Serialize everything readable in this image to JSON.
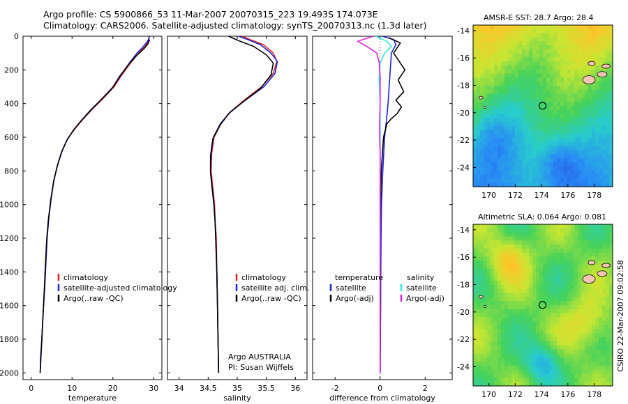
{
  "header": {
    "line1": "Argo profile: CS 5900866_53 11-Mar-2007 20070315_223 19.493S 174.073E",
    "line2": "Climatology: CARS2006. Satellite-adjusted climatology: synTS_20070313.nc (1.3d later)"
  },
  "colors": {
    "red": "#e02020",
    "blue": "#1a22d8",
    "black": "#000000",
    "cyan": "#30e8e8",
    "magenta": "#e020e0"
  },
  "chart_data": [
    {
      "type": "line",
      "id": "temperature",
      "xlabel": "temperature",
      "ylabel": "",
      "xlim": [
        -2,
        32
      ],
      "ylim": [
        2040,
        0
      ],
      "xticks": [
        "0",
        "10",
        "20",
        "30"
      ],
      "xtick_values": [
        0,
        10,
        20,
        30
      ],
      "yticks": [
        "0",
        "200",
        "400",
        "600",
        "800",
        "1000",
        "1200",
        "1400",
        "1600",
        "1800",
        "2000"
      ],
      "ytick_values": [
        0,
        200,
        400,
        600,
        800,
        1000,
        1200,
        1400,
        1600,
        1800,
        2000
      ],
      "legend": [
        "climatology",
        "satellite-adjusted climatology",
        "Argo(..raw -QC)"
      ],
      "series": [
        {
          "name": "climatology",
          "color": "red",
          "points": [
            [
              28.9,
              0
            ],
            [
              28.7,
              30
            ],
            [
              27.9,
              60
            ],
            [
              26.3,
              100
            ],
            [
              24.3,
              160
            ],
            [
              22.2,
              230
            ],
            [
              20.3,
              300
            ],
            [
              17.6,
              370
            ],
            [
              15.1,
              430
            ],
            [
              12.8,
              490
            ],
            [
              10.7,
              550
            ],
            [
              8.9,
              610
            ],
            [
              7.6,
              680
            ],
            [
              6.5,
              760
            ],
            [
              5.6,
              850
            ],
            [
              4.9,
              960
            ],
            [
              4.3,
              1080
            ],
            [
              3.9,
              1200
            ],
            [
              3.6,
              1340
            ],
            [
              3.3,
              1500
            ],
            [
              2.9,
              1650
            ],
            [
              2.6,
              1800
            ],
            [
              2.4,
              1900
            ],
            [
              2.2,
              2000
            ]
          ]
        },
        {
          "name": "satellite-adjusted climatology",
          "color": "blue",
          "points": [
            [
              29.0,
              0
            ],
            [
              28.5,
              30
            ],
            [
              27.5,
              60
            ],
            [
              25.9,
              100
            ],
            [
              24.0,
              160
            ],
            [
              22.0,
              230
            ],
            [
              20.1,
              300
            ],
            [
              17.4,
              370
            ],
            [
              15.0,
              430
            ],
            [
              12.7,
              490
            ],
            [
              10.6,
              550
            ],
            [
              8.9,
              610
            ],
            [
              7.6,
              680
            ],
            [
              6.5,
              760
            ],
            [
              5.6,
              850
            ],
            [
              4.9,
              960
            ],
            [
              4.3,
              1080
            ],
            [
              3.9,
              1200
            ],
            [
              3.6,
              1340
            ],
            [
              3.3,
              1500
            ],
            [
              2.9,
              1650
            ],
            [
              2.6,
              1800
            ],
            [
              2.4,
              1900
            ],
            [
              2.2,
              2000
            ]
          ]
        },
        {
          "name": "Argo(..raw -QC)",
          "color": "black",
          "points": [
            [
              29.0,
              20
            ],
            [
              28.6,
              45
            ],
            [
              27.6,
              75
            ],
            [
              25.6,
              120
            ],
            [
              23.8,
              170
            ],
            [
              21.6,
              240
            ],
            [
              19.8,
              310
            ],
            [
              17.0,
              380
            ],
            [
              14.5,
              440
            ],
            [
              12.3,
              500
            ],
            [
              10.3,
              560
            ],
            [
              8.7,
              620
            ],
            [
              7.4,
              690
            ],
            [
              6.4,
              770
            ],
            [
              5.5,
              860
            ],
            [
              4.8,
              970
            ],
            [
              4.2,
              1090
            ],
            [
              3.8,
              1210
            ],
            [
              3.5,
              1350
            ],
            [
              3.2,
              1510
            ],
            [
              2.9,
              1660
            ],
            [
              2.6,
              1810
            ],
            [
              2.3,
              1910
            ],
            [
              2.2,
              2000
            ]
          ]
        }
      ]
    },
    {
      "type": "line",
      "id": "salinity",
      "xlabel": "salinity",
      "xlim": [
        33.8,
        36.2
      ],
      "ylim": [
        2040,
        0
      ],
      "xticks": [
        "34",
        "34.5",
        "35",
        "35.5",
        "36"
      ],
      "xtick_values": [
        34,
        34.5,
        35,
        35.5,
        36
      ],
      "legend": [
        "climatology",
        "satellite adj. clim.",
        "Argo(..raw -QC)"
      ],
      "note": [
        "Argo AUSTRALIA",
        "PI: Susan Wijffels"
      ],
      "series": [
        {
          "name": "climatology",
          "color": "red",
          "points": [
            [
              35.08,
              0
            ],
            [
              35.22,
              20
            ],
            [
              35.45,
              50
            ],
            [
              35.62,
              100
            ],
            [
              35.68,
              150
            ],
            [
              35.62,
              220
            ],
            [
              35.42,
              300
            ],
            [
              35.12,
              380
            ],
            [
              34.88,
              450
            ],
            [
              34.72,
              520
            ],
            [
              34.6,
              600
            ],
            [
              34.56,
              700
            ],
            [
              34.55,
              800
            ],
            [
              34.58,
              900
            ],
            [
              34.61,
              1000
            ],
            [
              34.62,
              1100
            ],
            [
              34.64,
              1200
            ],
            [
              34.65,
              1400
            ],
            [
              34.66,
              1600
            ],
            [
              34.67,
              1800
            ],
            [
              34.68,
              2000
            ]
          ]
        },
        {
          "name": "satellite adj. clim.",
          "color": "blue",
          "points": [
            [
              35.02,
              0
            ],
            [
              35.18,
              20
            ],
            [
              35.4,
              50
            ],
            [
              35.58,
              100
            ],
            [
              35.69,
              150
            ],
            [
              35.65,
              220
            ],
            [
              35.46,
              300
            ],
            [
              35.14,
              380
            ],
            [
              34.88,
              450
            ],
            [
              34.71,
              520
            ],
            [
              34.59,
              600
            ],
            [
              34.55,
              700
            ],
            [
              34.54,
              800
            ],
            [
              34.57,
              900
            ],
            [
              34.6,
              1000
            ],
            [
              34.62,
              1100
            ],
            [
              34.63,
              1200
            ],
            [
              34.65,
              1400
            ],
            [
              34.66,
              1600
            ],
            [
              34.67,
              1800
            ],
            [
              34.68,
              2000
            ]
          ]
        },
        {
          "name": "Argo(..raw -QC)",
          "color": "black",
          "points": [
            [
              34.85,
              0
            ],
            [
              34.95,
              15
            ],
            [
              35.05,
              30
            ],
            [
              35.28,
              60
            ],
            [
              35.5,
              110
            ],
            [
              35.62,
              160
            ],
            [
              35.58,
              230
            ],
            [
              35.4,
              310
            ],
            [
              35.1,
              390
            ],
            [
              34.85,
              460
            ],
            [
              34.7,
              530
            ],
            [
              34.58,
              610
            ],
            [
              34.54,
              710
            ],
            [
              34.54,
              810
            ],
            [
              34.57,
              910
            ],
            [
              34.6,
              1010
            ],
            [
              34.62,
              1110
            ],
            [
              34.63,
              1210
            ],
            [
              34.65,
              1410
            ],
            [
              34.66,
              1610
            ],
            [
              34.67,
              1810
            ],
            [
              34.68,
              2000
            ]
          ]
        }
      ]
    },
    {
      "type": "line",
      "id": "difference",
      "xlabel": "difference from climatology",
      "xlim": [
        -3,
        3.2
      ],
      "ylim": [
        2040,
        0
      ],
      "xticks": [
        "-2",
        "0",
        "2"
      ],
      "xtick_values": [
        -2,
        0,
        2
      ],
      "legend_left_title": "temperature",
      "legend_right_title": "salinity",
      "legend": [
        "satellite",
        "Argo(-adj)",
        "satellite",
        "Argo(-adj)"
      ],
      "series": [
        {
          "name": "temperature satellite",
          "color": "blue",
          "points": [
            [
              0.1,
              0
            ],
            [
              0.6,
              20
            ],
            [
              0.7,
              50
            ],
            [
              0.5,
              100
            ],
            [
              0.45,
              200
            ],
            [
              0.4,
              300
            ],
            [
              0.35,
              400
            ],
            [
              0.28,
              500
            ],
            [
              0.2,
              600
            ],
            [
              0.12,
              800
            ],
            [
              0.06,
              1000
            ],
            [
              0.04,
              1200
            ],
            [
              0.02,
              1600
            ],
            [
              0.0,
              2000
            ]
          ]
        },
        {
          "name": "temperature Argo(-adj)",
          "color": "black",
          "points": [
            [
              0.4,
              10
            ],
            [
              0.9,
              40
            ],
            [
              0.6,
              100
            ],
            [
              0.75,
              130
            ],
            [
              0.9,
              160
            ],
            [
              1.1,
              200
            ],
            [
              0.8,
              260
            ],
            [
              1.05,
              330
            ],
            [
              0.7,
              380
            ],
            [
              0.95,
              420
            ],
            [
              0.75,
              460
            ],
            [
              0.5,
              490
            ],
            [
              0.3,
              520
            ],
            [
              0.15,
              600
            ],
            [
              0.05,
              800
            ],
            [
              0.02,
              1000
            ],
            [
              0.0,
              1200
            ],
            [
              0.02,
              1600
            ],
            [
              0.0,
              2000
            ]
          ]
        },
        {
          "name": "salinity satellite",
          "color": "cyan",
          "points": [
            [
              -0.2,
              0
            ],
            [
              0.3,
              30
            ],
            [
              0.5,
              60
            ],
            [
              0.2,
              100
            ],
            [
              0.0,
              160
            ],
            [
              -0.05,
              250
            ],
            [
              0.0,
              400
            ],
            [
              0.0,
              600
            ],
            [
              0.0,
              1000
            ],
            [
              0.0,
              2000
            ]
          ]
        },
        {
          "name": "salinity Argo(-adj)",
          "color": "magenta",
          "points": [
            [
              -0.3,
              0
            ],
            [
              -1.0,
              30
            ],
            [
              -0.6,
              60
            ],
            [
              -0.15,
              100
            ],
            [
              -0.05,
              150
            ],
            [
              0.0,
              250
            ],
            [
              0.0,
              400
            ],
            [
              -0.02,
              500
            ],
            [
              -0.02,
              600
            ],
            [
              0.0,
              700
            ],
            [
              0.0,
              1000
            ],
            [
              0.0,
              2000
            ]
          ]
        }
      ]
    },
    {
      "type": "heatmap",
      "id": "sst-map",
      "title": "AMSR-E SST: 28.7 Argo: 28.4",
      "xlim": [
        168.8,
        179.4
      ],
      "ylim": [
        -25.4,
        -13.6
      ],
      "xticks": [
        "170",
        "172",
        "174",
        "176",
        "178"
      ],
      "xtick_values": [
        170,
        172,
        174,
        176,
        178
      ],
      "yticks": [
        "-14",
        "-16",
        "-18",
        "-20",
        "-22",
        "-24"
      ],
      "ytick_values": [
        -14,
        -16,
        -18,
        -20,
        -22,
        -24
      ],
      "argo_position": [
        174.073,
        -19.493
      ]
    },
    {
      "type": "heatmap",
      "id": "sla-map",
      "title": "Altimetric SLA: 0.064 Argo: 0.081",
      "xlim": [
        168.8,
        179.4
      ],
      "ylim": [
        -25.4,
        -13.6
      ],
      "xticks": [
        "170",
        "172",
        "174",
        "176",
        "178"
      ],
      "xtick_values": [
        170,
        172,
        174,
        176,
        178
      ],
      "yticks": [
        "-14",
        "-16",
        "-18",
        "-20",
        "-22",
        "-24"
      ],
      "ytick_values": [
        -14,
        -16,
        -18,
        -20,
        -22,
        -24
      ],
      "argo_position": [
        174.073,
        -19.493
      ]
    }
  ],
  "footer": {
    "stamp": "CSIRO 22-Mar-2007 09:02:58"
  }
}
